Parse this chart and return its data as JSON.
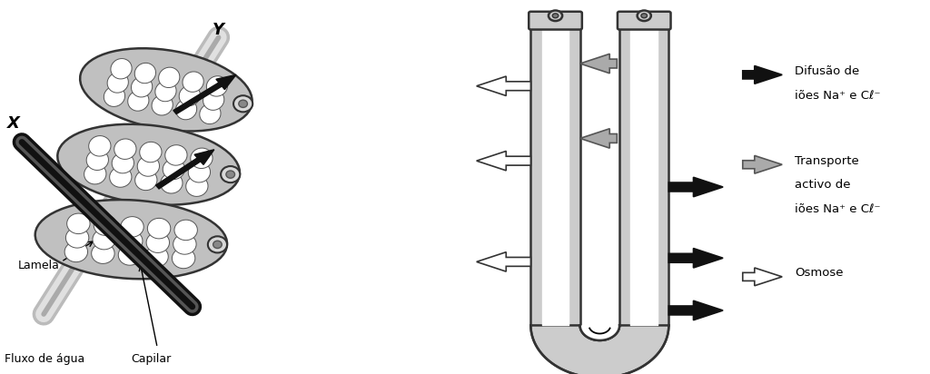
{
  "bg_color": "#ffffff",
  "tube_gray": "#cccccc",
  "tube_dark": "#333333",
  "legend_items": [
    {
      "line1": "Difusão de",
      "line2": "iões Na⁺ e Cℓ⁻",
      "arrow_fc": "#111111",
      "arrow_ec": "#111111"
    },
    {
      "line1": "Transporte",
      "line2": "activo de",
      "line3": "iões Na⁺ e Cℓ⁻",
      "arrow_fc": "#aaaaaa",
      "arrow_ec": "#555555"
    },
    {
      "line1": "Osmose",
      "arrow_fc": "#ffffff",
      "arrow_ec": "#333333"
    }
  ],
  "label_Y": "Y",
  "label_X": "X",
  "label_lamela": "Lamela",
  "label_fluxo": "Fluxo de água",
  "label_capilar": "Capilar"
}
